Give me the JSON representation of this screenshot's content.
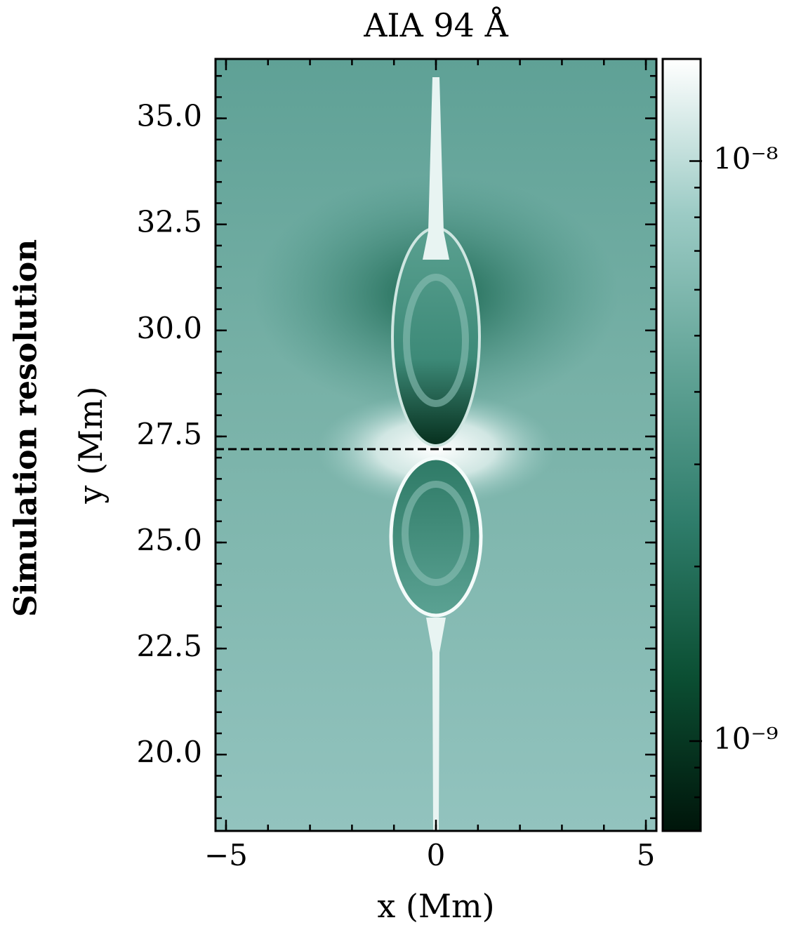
{
  "chart_data": {
    "type": "heatmap",
    "title": "AIA 94 Å",
    "xlabel": "x (Mm)",
    "ylabel": "y (Mm)",
    "annotation": "Simulation resolution",
    "annotation_color": "#ff0000",
    "xlim": [
      -5.25,
      5.25
    ],
    "ylim": [
      18.2,
      36.4
    ],
    "xticks": [
      {
        "value": -5,
        "label": "−5"
      },
      0,
      5
    ],
    "yticks": [
      {
        "value": 20,
        "label": "20.0"
      },
      22.5,
      {
        "value": 25,
        "label": "25.0"
      },
      27.5,
      {
        "value": 30,
        "label": "30.0"
      },
      32.5,
      {
        "value": 35,
        "label": "35.0"
      }
    ],
    "xminorticks": [
      -5,
      -4,
      -3,
      -2,
      -1,
      0,
      1,
      2,
      3,
      4,
      5
    ],
    "yminorticks": [
      18.5,
      19,
      19.5,
      20,
      20.5,
      21,
      21.5,
      22,
      22.5,
      23,
      23.5,
      24,
      24.5,
      25,
      25.5,
      26,
      26.5,
      27,
      27.5,
      28,
      28.5,
      29,
      29.5,
      30,
      30.5,
      31,
      31.5,
      32,
      32.5,
      33,
      33.5,
      34,
      34.5,
      35,
      35.5,
      36
    ],
    "hline": 27.2,
    "hline_color": "#000000",
    "colorbar": {
      "scale": "log",
      "lim": [
        7e-10,
        1.5e-08
      ],
      "ticks": [
        {
          "value": 1e-09,
          "label": "10⁻⁹"
        },
        {
          "value": 1e-08,
          "label": "10⁻⁸"
        }
      ],
      "minorticks": [
        8e-10,
        9e-10,
        2e-09,
        3e-09,
        4e-09,
        5e-09,
        6e-09,
        7e-09,
        8e-09,
        9e-09
      ],
      "colormap": [
        "#00150a",
        "#0b4f33",
        "#2f7d6b",
        "#62a497",
        "#9ccbc5",
        "#ffffff"
      ]
    }
  }
}
